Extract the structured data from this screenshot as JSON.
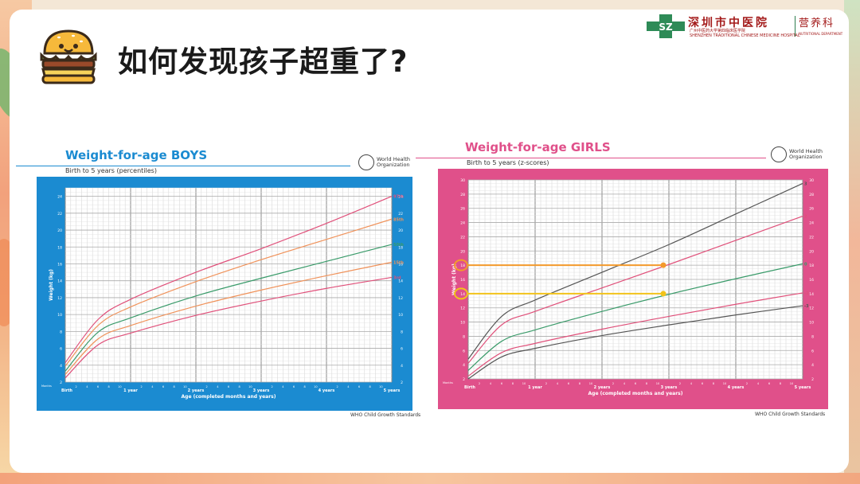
{
  "slide": {
    "title": "如何发现孩子超重了?",
    "icon": "burger-icon"
  },
  "logo": {
    "mark_text": "SZ",
    "hospital_name": "深圳市中医院",
    "hospital_sub_cn": "广州中医药大学第四临床医学院",
    "hospital_sub_en": "SHENZHEN TRADITIONAL CHINESE MEDICINE HOSPITAL",
    "department": "营养科",
    "department_en": "NUTRITIONAL DEPARTMENT"
  },
  "colors": {
    "boys_accent": "#1b8bd1",
    "girls_accent": "#e0508a",
    "highlight_orange": "#f39a2c",
    "highlight_yellow": "#f2c31b"
  },
  "chart_data": [
    {
      "type": "line",
      "title": "Weight-for-age BOYS",
      "subtitle": "Birth to 5 years (percentiles)",
      "organization": [
        "World Health",
        "Organization"
      ],
      "xlabel": "Age (completed months and years)",
      "ylabel": "Weight (kg)",
      "footer": "WHO Child Growth Standards",
      "months_label": "Months",
      "x_major_ticks": [
        "Birth",
        "1 year",
        "2 years",
        "3 years",
        "4 years",
        "5 years"
      ],
      "x_minor_ticks": [
        "2",
        "4",
        "6",
        "8",
        "10"
      ],
      "xlim": [
        0,
        60
      ],
      "ylim": [
        2,
        25
      ],
      "y_ticks": [
        2,
        4,
        6,
        8,
        10,
        12,
        14,
        16,
        18,
        20,
        22,
        24
      ],
      "x": [
        0,
        6,
        12,
        24,
        36,
        48,
        60
      ],
      "series": [
        {
          "name": "97th",
          "color": "#e0507a",
          "values": [
            4.3,
            9.4,
            11.8,
            15.0,
            17.8,
            20.8,
            24.0
          ]
        },
        {
          "name": "85th",
          "color": "#f0925a",
          "values": [
            3.9,
            8.7,
            10.9,
            13.9,
            16.5,
            18.9,
            21.3
          ]
        },
        {
          "name": "50th",
          "color": "#3a9b6a",
          "values": [
            3.3,
            7.9,
            9.6,
            12.2,
            14.3,
            16.3,
            18.3
          ]
        },
        {
          "name": "15th",
          "color": "#f0925a",
          "values": [
            2.9,
            7.1,
            8.7,
            11.0,
            12.9,
            14.6,
            16.2
          ]
        },
        {
          "name": "3rd",
          "color": "#e0507a",
          "values": [
            2.5,
            6.4,
            7.8,
            9.9,
            11.6,
            13.1,
            14.4
          ]
        }
      ]
    },
    {
      "type": "line",
      "title": "Weight-for-age GIRLS",
      "subtitle": "Birth to 5 years (z-scores)",
      "organization": [
        "World Health",
        "Organization"
      ],
      "xlabel": "Age (completed months and years)",
      "ylabel": "Weight (kg)",
      "footer": "WHO Child Growth Standards",
      "months_label": "Months",
      "x_major_ticks": [
        "Birth",
        "1 year",
        "2 years",
        "3 years",
        "4 years",
        "5 years"
      ],
      "x_minor_ticks": [
        "2",
        "4",
        "6",
        "8",
        "10"
      ],
      "xlim": [
        0,
        60
      ],
      "ylim": [
        2,
        30
      ],
      "y_ticks": [
        2,
        4,
        6,
        8,
        10,
        12,
        14,
        16,
        18,
        20,
        22,
        24,
        26,
        28,
        30
      ],
      "x": [
        0,
        6,
        12,
        24,
        36,
        48,
        60
      ],
      "series": [
        {
          "name": "3",
          "color": "#555555",
          "values": [
            4.8,
            10.8,
            13.1,
            17.0,
            20.9,
            25.2,
            29.5
          ]
        },
        {
          "name": "2",
          "color": "#e0507a",
          "values": [
            4.2,
            9.6,
            11.5,
            14.8,
            18.1,
            21.5,
            24.9
          ]
        },
        {
          "name": "0",
          "color": "#3a9b6a",
          "values": [
            3.2,
            7.3,
            8.9,
            11.5,
            13.9,
            16.1,
            18.2
          ]
        },
        {
          "name": "-2",
          "color": "#e0507a",
          "values": [
            2.4,
            5.7,
            7.0,
            9.0,
            10.8,
            12.5,
            14.1
          ]
        },
        {
          "name": "-3",
          "color": "#555555",
          "values": [
            2.0,
            5.1,
            6.3,
            8.1,
            9.6,
            11.0,
            12.3
          ]
        }
      ],
      "highlights": [
        {
          "y": 18,
          "x": 35,
          "color": "#f39a2c",
          "label": "18"
        },
        {
          "y": 14,
          "x": 35,
          "color": "#f2c31b",
          "label": "14"
        }
      ]
    }
  ]
}
